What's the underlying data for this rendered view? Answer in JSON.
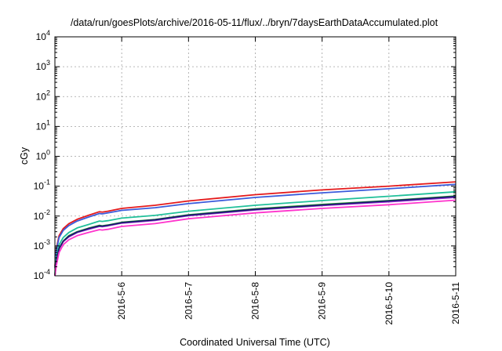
{
  "chart_data": {
    "type": "line",
    "title": "/data/run/goesPlots/archive/2016-05-11/flux/../bryn/7daysEarthDataAccumulated.plot",
    "xlabel": "Coordinated Universal Time (UTC)",
    "ylabel": "cGy",
    "y_scale": "log",
    "ylim": [
      0.0001,
      10000
    ],
    "y_ticks": [
      {
        "value": 0.0001,
        "base": "10",
        "exp": "-4"
      },
      {
        "value": 0.001,
        "base": "10",
        "exp": "-3"
      },
      {
        "value": 0.01,
        "base": "10",
        "exp": "-2"
      },
      {
        "value": 0.1,
        "base": "10",
        "exp": "-1"
      },
      {
        "value": 1,
        "base": "10",
        "exp": "0"
      },
      {
        "value": 10,
        "base": "10",
        "exp": "1"
      },
      {
        "value": 100,
        "base": "10",
        "exp": "2"
      },
      {
        "value": 1000,
        "base": "10",
        "exp": "3"
      },
      {
        "value": 10000,
        "base": "10",
        "exp": "4"
      }
    ],
    "xlim": [
      "2016-05-05",
      "2016-05-11"
    ],
    "x_ticks": [
      {
        "value": "2016-05-06",
        "label": "2016-5-6"
      },
      {
        "value": "2016-05-07",
        "label": "2016-5-7"
      },
      {
        "value": "2016-05-08",
        "label": "2016-5-8"
      },
      {
        "value": "2016-05-09",
        "label": "2016-5-9"
      },
      {
        "value": "2016-05-10",
        "label": "2016-5-10"
      },
      {
        "value": "2016-05-11",
        "label": "2016-5-11"
      }
    ],
    "grid": true,
    "series": [
      {
        "color": "#e41a1c",
        "x": [
          "2016-05-05T00:00",
          "2016-05-05T00:30",
          "2016-05-05T01:30",
          "2016-05-05T03:00",
          "2016-05-05T05:00",
          "2016-05-05T08:00",
          "2016-05-05T12:00",
          "2016-05-05T16:00",
          "2016-05-05T17:00",
          "2016-05-05T19:00",
          "2016-05-06T00:00",
          "2016-05-06T12:00",
          "2016-05-07T00:00",
          "2016-05-08T00:00",
          "2016-05-09T00:00",
          "2016-05-10T00:00",
          "2016-05-11T00:00"
        ],
        "y": [
          0.0002,
          0.0008,
          0.0022,
          0.0038,
          0.0055,
          0.0078,
          0.0105,
          0.014,
          0.0135,
          0.0145,
          0.018,
          0.023,
          0.032,
          0.052,
          0.075,
          0.1,
          0.14
        ]
      },
      {
        "color": "#3b5bdb",
        "x": [
          "2016-05-05T00:00",
          "2016-05-05T00:30",
          "2016-05-05T01:30",
          "2016-05-05T03:00",
          "2016-05-05T05:00",
          "2016-05-05T08:00",
          "2016-05-05T12:00",
          "2016-05-05T16:00",
          "2016-05-05T17:00",
          "2016-05-05T19:00",
          "2016-05-06T00:00",
          "2016-05-06T12:00",
          "2016-05-07T00:00",
          "2016-05-08T00:00",
          "2016-05-09T00:00",
          "2016-05-10T00:00",
          "2016-05-11T00:00"
        ],
        "y": [
          0.00018,
          0.0007,
          0.0019,
          0.0033,
          0.0048,
          0.0068,
          0.0092,
          0.0122,
          0.0118,
          0.0127,
          0.0155,
          0.019,
          0.026,
          0.042,
          0.06,
          0.082,
          0.115
        ]
      },
      {
        "color": "#20c09a",
        "x": [
          "2016-05-05T00:00",
          "2016-05-05T00:30",
          "2016-05-05T01:30",
          "2016-05-05T03:00",
          "2016-05-05T05:00",
          "2016-05-05T08:00",
          "2016-05-05T12:00",
          "2016-05-05T16:00",
          "2016-05-05T17:00",
          "2016-05-05T19:00",
          "2016-05-06T00:00",
          "2016-05-06T12:00",
          "2016-05-07T00:00",
          "2016-05-08T00:00",
          "2016-05-09T00:00",
          "2016-05-10T00:00",
          "2016-05-11T00:00"
        ],
        "y": [
          0.00012,
          0.0004,
          0.0011,
          0.0019,
          0.0028,
          0.004,
          0.0052,
          0.0068,
          0.0066,
          0.007,
          0.0085,
          0.0105,
          0.0145,
          0.023,
          0.033,
          0.046,
          0.065
        ]
      },
      {
        "color": "#ff9900",
        "x": [
          "2016-05-05T00:00",
          "2016-05-05T00:30",
          "2016-05-05T01:30",
          "2016-05-05T03:00",
          "2016-05-05T05:00",
          "2016-05-05T08:00",
          "2016-05-05T12:00",
          "2016-05-05T16:00",
          "2016-05-05T17:00",
          "2016-05-05T19:00",
          "2016-05-06T00:00",
          "2016-05-06T12:00",
          "2016-05-07T00:00",
          "2016-05-08T00:00",
          "2016-05-09T00:00",
          "2016-05-10T00:00",
          "2016-05-11T00:00"
        ],
        "y": [
          0.0001,
          0.0003,
          0.0008,
          0.0014,
          0.0021,
          0.0029,
          0.0037,
          0.0046,
          0.0045,
          0.0048,
          0.0059,
          0.0073,
          0.0105,
          0.0165,
          0.023,
          0.031,
          0.044
        ]
      },
      {
        "color": "#2ca02c",
        "x": [
          "2016-05-05T00:00",
          "2016-05-05T00:30",
          "2016-05-05T01:30",
          "2016-05-05T03:00",
          "2016-05-05T05:00",
          "2016-05-05T08:00",
          "2016-05-05T12:00",
          "2016-05-05T16:00",
          "2016-05-05T17:00",
          "2016-05-05T19:00",
          "2016-05-06T00:00",
          "2016-05-06T12:00",
          "2016-05-07T00:00",
          "2016-05-08T00:00",
          "2016-05-09T00:00",
          "2016-05-10T00:00",
          "2016-05-11T00:00"
        ],
        "y": [
          0.0001,
          0.00031,
          0.00083,
          0.00145,
          0.0022,
          0.003,
          0.0039,
          0.0049,
          0.0047,
          0.005,
          0.0062,
          0.0077,
          0.011,
          0.0175,
          0.0245,
          0.033,
          0.047
        ]
      },
      {
        "color": "#9b30d9",
        "x": [
          "2016-05-05T00:00",
          "2016-05-05T00:30",
          "2016-05-05T01:30",
          "2016-05-05T03:00",
          "2016-05-05T05:00",
          "2016-05-05T08:00",
          "2016-05-05T12:00",
          "2016-05-05T16:00",
          "2016-05-05T17:00",
          "2016-05-05T19:00",
          "2016-05-06T00:00",
          "2016-05-06T12:00",
          "2016-05-07T00:00",
          "2016-05-08T00:00",
          "2016-05-09T00:00",
          "2016-05-10T00:00",
          "2016-05-11T00:00"
        ],
        "y": [
          0.0001,
          0.00029,
          0.00079,
          0.0014,
          0.002,
          0.0028,
          0.0036,
          0.0045,
          0.0044,
          0.0047,
          0.0058,
          0.0071,
          0.0102,
          0.016,
          0.0225,
          0.03,
          0.042
        ]
      },
      {
        "color": "#1a1a6e",
        "x": [
          "2016-05-05T00:00",
          "2016-05-05T00:30",
          "2016-05-05T01:30",
          "2016-05-05T03:00",
          "2016-05-05T05:00",
          "2016-05-05T08:00",
          "2016-05-05T12:00",
          "2016-05-05T16:00",
          "2016-05-05T17:00",
          "2016-05-05T19:00",
          "2016-05-06T00:00",
          "2016-05-06T12:00",
          "2016-05-07T00:00",
          "2016-05-08T00:00",
          "2016-05-09T00:00",
          "2016-05-10T00:00",
          "2016-05-11T00:00"
        ],
        "y": [
          0.0001,
          0.0003,
          0.00082,
          0.00143,
          0.0021,
          0.0029,
          0.0038,
          0.0047,
          0.0046,
          0.0049,
          0.006,
          0.0075,
          0.0107,
          0.0168,
          0.0235,
          0.032,
          0.045
        ]
      },
      {
        "color": "#ff33cc",
        "x": [
          "2016-05-05T00:00",
          "2016-05-05T00:30",
          "2016-05-05T01:30",
          "2016-05-05T03:00",
          "2016-05-05T05:00",
          "2016-05-05T08:00",
          "2016-05-05T12:00",
          "2016-05-05T16:00",
          "2016-05-05T17:00",
          "2016-05-05T19:00",
          "2016-05-06T00:00",
          "2016-05-06T12:00",
          "2016-05-07T00:00",
          "2016-05-08T00:00",
          "2016-05-09T00:00",
          "2016-05-10T00:00",
          "2016-05-11T00:00"
        ],
        "y": [
          0.0001,
          0.00022,
          0.0006,
          0.0011,
          0.0016,
          0.0022,
          0.0028,
          0.0035,
          0.0034,
          0.0036,
          0.0045,
          0.0056,
          0.0081,
          0.0128,
          0.018,
          0.024,
          0.034
        ]
      }
    ]
  }
}
